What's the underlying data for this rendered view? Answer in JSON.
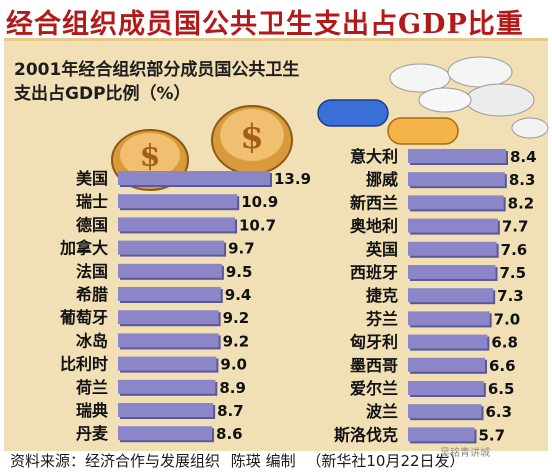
{
  "header": {
    "title": "经合组织成员国公共卫生支出占GDP比重",
    "subtitle_line1": "2001年经合组织部分成员国公共卫生",
    "subtitle_line2": "支出占GDP比例（%）"
  },
  "footer": {
    "source": "资料来源：经济合作与发展组织",
    "author": "陈瑛  编制",
    "credit": "（新华社10月22日发）"
  },
  "watermark": "吴铭青讲城",
  "colors": {
    "bar": "#8a86c8",
    "bar_dark": "#5c5898",
    "panel": "#f1e0b5",
    "title": "#b21a1a",
    "coin": "#d89a3a"
  },
  "chart_data": {
    "type": "bar",
    "orientation": "horizontal",
    "title": "2001年经合组织部分成员国公共卫生支出占GDP比例（%）",
    "xlabel": "",
    "ylabel": "",
    "grid": false,
    "left_group": {
      "categories": [
        "美国",
        "瑞士",
        "德国",
        "加拿大",
        "法国",
        "希腊",
        "葡萄牙",
        "冰岛",
        "比利时",
        "荷兰",
        "瑞典",
        "丹麦"
      ],
      "values": [
        13.9,
        10.9,
        10.7,
        9.7,
        9.5,
        9.4,
        9.2,
        9.2,
        9.0,
        8.9,
        8.7,
        8.6
      ],
      "value_labels": [
        "13.9",
        "10.9",
        "10.7",
        "9.7",
        "9.5",
        "9.4",
        "9.2",
        "9.2",
        "9.0",
        "8.9",
        "8.7",
        "8.6"
      ]
    },
    "right_group": {
      "categories": [
        "意大利",
        "挪威",
        "新西兰",
        "奥地利",
        "英国",
        "西班牙",
        "捷克",
        "芬兰",
        "匈牙利",
        "墨西哥",
        "爱尔兰",
        "波兰",
        "斯洛伐克"
      ],
      "values": [
        8.4,
        8.3,
        8.2,
        7.7,
        7.6,
        7.5,
        7.3,
        7.0,
        6.8,
        6.6,
        6.5,
        6.3,
        5.7
      ],
      "value_labels": [
        "8.4",
        "8.3",
        "8.2",
        "7.7",
        "7.6",
        "7.5",
        "7.3",
        "7.0",
        "6.8",
        "6.6",
        "6.5",
        "6.3",
        "5.7"
      ]
    }
  }
}
